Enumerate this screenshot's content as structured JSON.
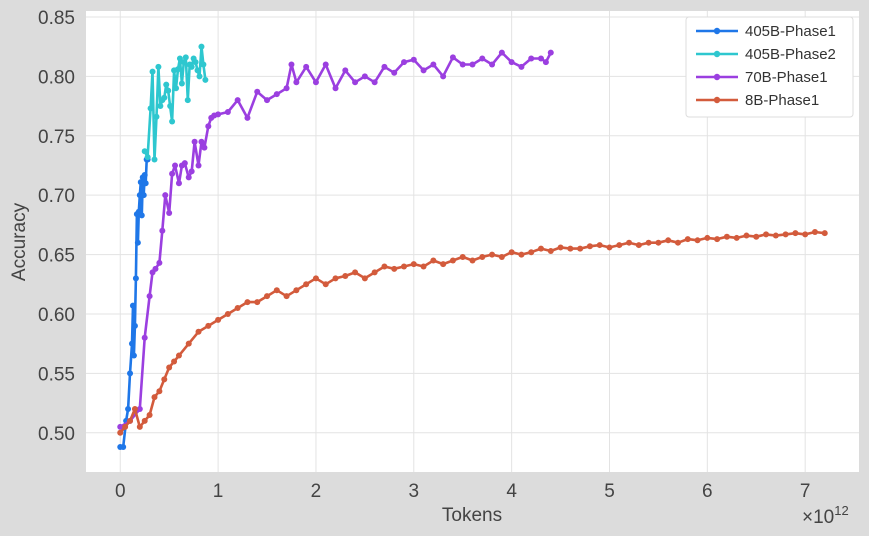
{
  "chart_data": {
    "type": "line",
    "title": "",
    "xlabel": "Tokens",
    "ylabel": "Accuracy",
    "x_multiplier_label": "×10",
    "x_multiplier_exp": "12",
    "xlim": [
      -0.35,
      7.55
    ],
    "ylim": [
      0.467,
      0.855
    ],
    "x_ticks": [
      0,
      1,
      2,
      3,
      4,
      5,
      6,
      7
    ],
    "x_tick_labels": [
      "0",
      "1",
      "2",
      "3",
      "4",
      "5",
      "6",
      "7"
    ],
    "y_ticks": [
      0.5,
      0.55,
      0.6,
      0.65,
      0.7,
      0.75,
      0.8,
      0.85
    ],
    "y_tick_labels": [
      "0.50",
      "0.55",
      "0.60",
      "0.65",
      "0.70",
      "0.75",
      "0.80",
      "0.85"
    ],
    "grid": true,
    "legend_position": "top-right",
    "colors": {
      "background": "#ffffff",
      "grid": "#e3e3e3"
    },
    "series": [
      {
        "name": "405B-Phase1",
        "color": "#1f77e8",
        "x": [
          0.0,
          0.03,
          0.06,
          0.08,
          0.1,
          0.12,
          0.13,
          0.14,
          0.15,
          0.16,
          0.17,
          0.18,
          0.19,
          0.2,
          0.21,
          0.22,
          0.23,
          0.24,
          0.25,
          0.26,
          0.27,
          0.28
        ],
        "y": [
          0.488,
          0.488,
          0.51,
          0.52,
          0.55,
          0.575,
          0.607,
          0.565,
          0.59,
          0.63,
          0.684,
          0.66,
          0.686,
          0.7,
          0.711,
          0.683,
          0.715,
          0.7,
          0.717,
          0.71,
          0.73,
          0.73
        ]
      },
      {
        "name": "405B-Phase2",
        "color": "#2ec7cf",
        "x": [
          0.25,
          0.28,
          0.31,
          0.33,
          0.35,
          0.37,
          0.39,
          0.41,
          0.43,
          0.45,
          0.47,
          0.49,
          0.51,
          0.53,
          0.55,
          0.57,
          0.59,
          0.61,
          0.63,
          0.65,
          0.67,
          0.69,
          0.71,
          0.73,
          0.75,
          0.77,
          0.79,
          0.81,
          0.83,
          0.85,
          0.87
        ],
        "y": [
          0.737,
          0.732,
          0.773,
          0.804,
          0.73,
          0.766,
          0.808,
          0.775,
          0.78,
          0.782,
          0.793,
          0.788,
          0.775,
          0.762,
          0.805,
          0.79,
          0.806,
          0.815,
          0.794,
          0.812,
          0.816,
          0.78,
          0.81,
          0.808,
          0.815,
          0.812,
          0.805,
          0.8,
          0.825,
          0.81,
          0.797
        ]
      },
      {
        "name": "70B-Phase1",
        "color": "#9b3fe0",
        "x": [
          0.0,
          0.1,
          0.2,
          0.25,
          0.3,
          0.33,
          0.36,
          0.4,
          0.43,
          0.46,
          0.5,
          0.53,
          0.56,
          0.6,
          0.63,
          0.66,
          0.7,
          0.73,
          0.76,
          0.8,
          0.83,
          0.86,
          0.9,
          0.93,
          0.96,
          1.0,
          1.1,
          1.2,
          1.3,
          1.4,
          1.5,
          1.6,
          1.7,
          1.75,
          1.8,
          1.9,
          2.0,
          2.1,
          2.2,
          2.3,
          2.4,
          2.5,
          2.6,
          2.7,
          2.8,
          2.9,
          3.0,
          3.1,
          3.2,
          3.3,
          3.4,
          3.5,
          3.6,
          3.7,
          3.8,
          3.9,
          4.0,
          4.1,
          4.2,
          4.3,
          4.35,
          4.4
        ],
        "y": [
          0.505,
          0.51,
          0.52,
          0.58,
          0.615,
          0.635,
          0.638,
          0.643,
          0.67,
          0.7,
          0.685,
          0.718,
          0.725,
          0.71,
          0.725,
          0.727,
          0.715,
          0.72,
          0.745,
          0.725,
          0.745,
          0.74,
          0.758,
          0.765,
          0.767,
          0.768,
          0.77,
          0.78,
          0.765,
          0.787,
          0.78,
          0.785,
          0.79,
          0.81,
          0.795,
          0.808,
          0.795,
          0.81,
          0.79,
          0.805,
          0.795,
          0.8,
          0.795,
          0.808,
          0.803,
          0.812,
          0.814,
          0.805,
          0.81,
          0.8,
          0.816,
          0.81,
          0.81,
          0.815,
          0.81,
          0.82,
          0.812,
          0.808,
          0.815,
          0.815,
          0.812,
          0.82
        ]
      },
      {
        "name": "8B-Phase1",
        "color": "#d35b3c",
        "x": [
          0.0,
          0.05,
          0.1,
          0.15,
          0.2,
          0.25,
          0.3,
          0.35,
          0.4,
          0.45,
          0.5,
          0.55,
          0.6,
          0.7,
          0.8,
          0.9,
          1.0,
          1.1,
          1.2,
          1.3,
          1.4,
          1.5,
          1.6,
          1.7,
          1.8,
          1.9,
          2.0,
          2.1,
          2.2,
          2.3,
          2.4,
          2.5,
          2.6,
          2.7,
          2.8,
          2.9,
          3.0,
          3.1,
          3.2,
          3.3,
          3.4,
          3.5,
          3.6,
          3.7,
          3.8,
          3.9,
          4.0,
          4.1,
          4.2,
          4.3,
          4.4,
          4.5,
          4.6,
          4.7,
          4.8,
          4.9,
          5.0,
          5.1,
          5.2,
          5.3,
          5.4,
          5.5,
          5.6,
          5.7,
          5.8,
          5.9,
          6.0,
          6.1,
          6.2,
          6.3,
          6.4,
          6.5,
          6.6,
          6.7,
          6.8,
          6.9,
          7.0,
          7.1,
          7.2
        ],
        "y": [
          0.5,
          0.505,
          0.51,
          0.52,
          0.505,
          0.51,
          0.515,
          0.53,
          0.535,
          0.545,
          0.555,
          0.56,
          0.565,
          0.575,
          0.585,
          0.59,
          0.595,
          0.6,
          0.605,
          0.61,
          0.61,
          0.615,
          0.62,
          0.615,
          0.62,
          0.625,
          0.63,
          0.625,
          0.63,
          0.632,
          0.635,
          0.63,
          0.635,
          0.64,
          0.638,
          0.64,
          0.642,
          0.64,
          0.645,
          0.642,
          0.645,
          0.648,
          0.645,
          0.648,
          0.65,
          0.648,
          0.652,
          0.65,
          0.652,
          0.655,
          0.653,
          0.656,
          0.655,
          0.655,
          0.657,
          0.658,
          0.656,
          0.658,
          0.66,
          0.658,
          0.66,
          0.66,
          0.662,
          0.66,
          0.663,
          0.662,
          0.664,
          0.663,
          0.665,
          0.664,
          0.666,
          0.665,
          0.667,
          0.666,
          0.667,
          0.668,
          0.667,
          0.669,
          0.668
        ]
      }
    ]
  }
}
